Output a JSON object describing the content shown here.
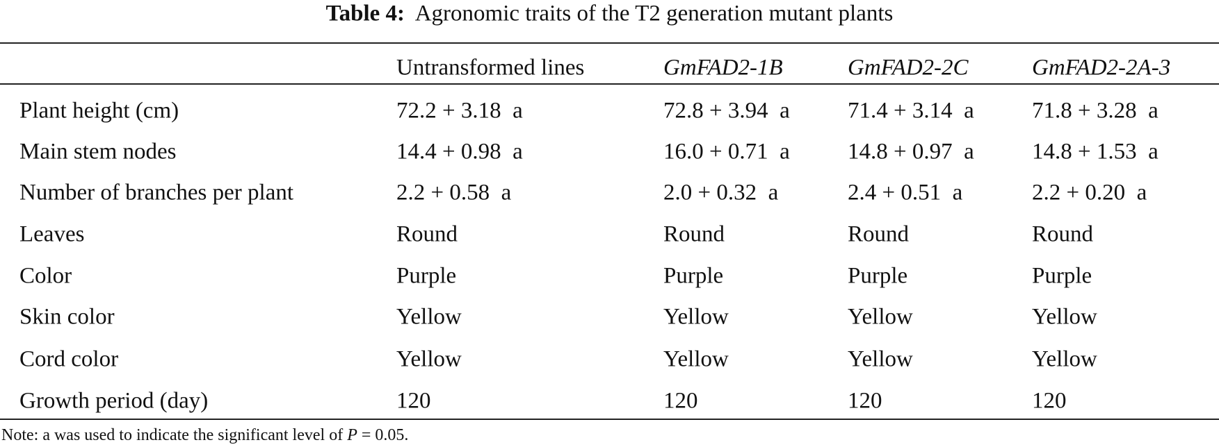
{
  "title": {
    "label": "Table 4:",
    "text": "Agronomic traits of the T2 generation mutant plants"
  },
  "table": {
    "header": [
      "Untransformed lines",
      "GmFAD2-1B",
      "GmFAD2-2C",
      "GmFAD2-2A-3"
    ],
    "rows": [
      [
        "Plant height (cm)",
        "72.2 + 3.18  a",
        "72.8 + 3.94  a",
        "71.4 + 3.14  a",
        "71.8 + 3.28  a"
      ],
      [
        "Main stem nodes",
        "14.4 + 0.98  a",
        "16.0 + 0.71  a",
        "14.8 + 0.97  a",
        "14.8 + 1.53  a"
      ],
      [
        "Number of branches per plant",
        "2.2 + 0.58  a",
        "2.0 + 0.32  a",
        "2.4 + 0.51  a",
        "2.2 + 0.20  a"
      ],
      [
        "Leaves",
        "Round",
        "Round",
        "Round",
        "Round"
      ],
      [
        "Color",
        "Purple",
        "Purple",
        "Purple",
        "Purple"
      ],
      [
        "Skin color",
        "Yellow",
        "Yellow",
        "Yellow",
        "Yellow"
      ],
      [
        "Cord color",
        "Yellow",
        "Yellow",
        "Yellow",
        "Yellow"
      ],
      [
        "Growth period (day)",
        "120",
        "120",
        "120",
        "120"
      ]
    ]
  },
  "note": {
    "text": "Note: a was used to indicate the significant level of",
    "variable": "P",
    "value": "= 0.05."
  }
}
